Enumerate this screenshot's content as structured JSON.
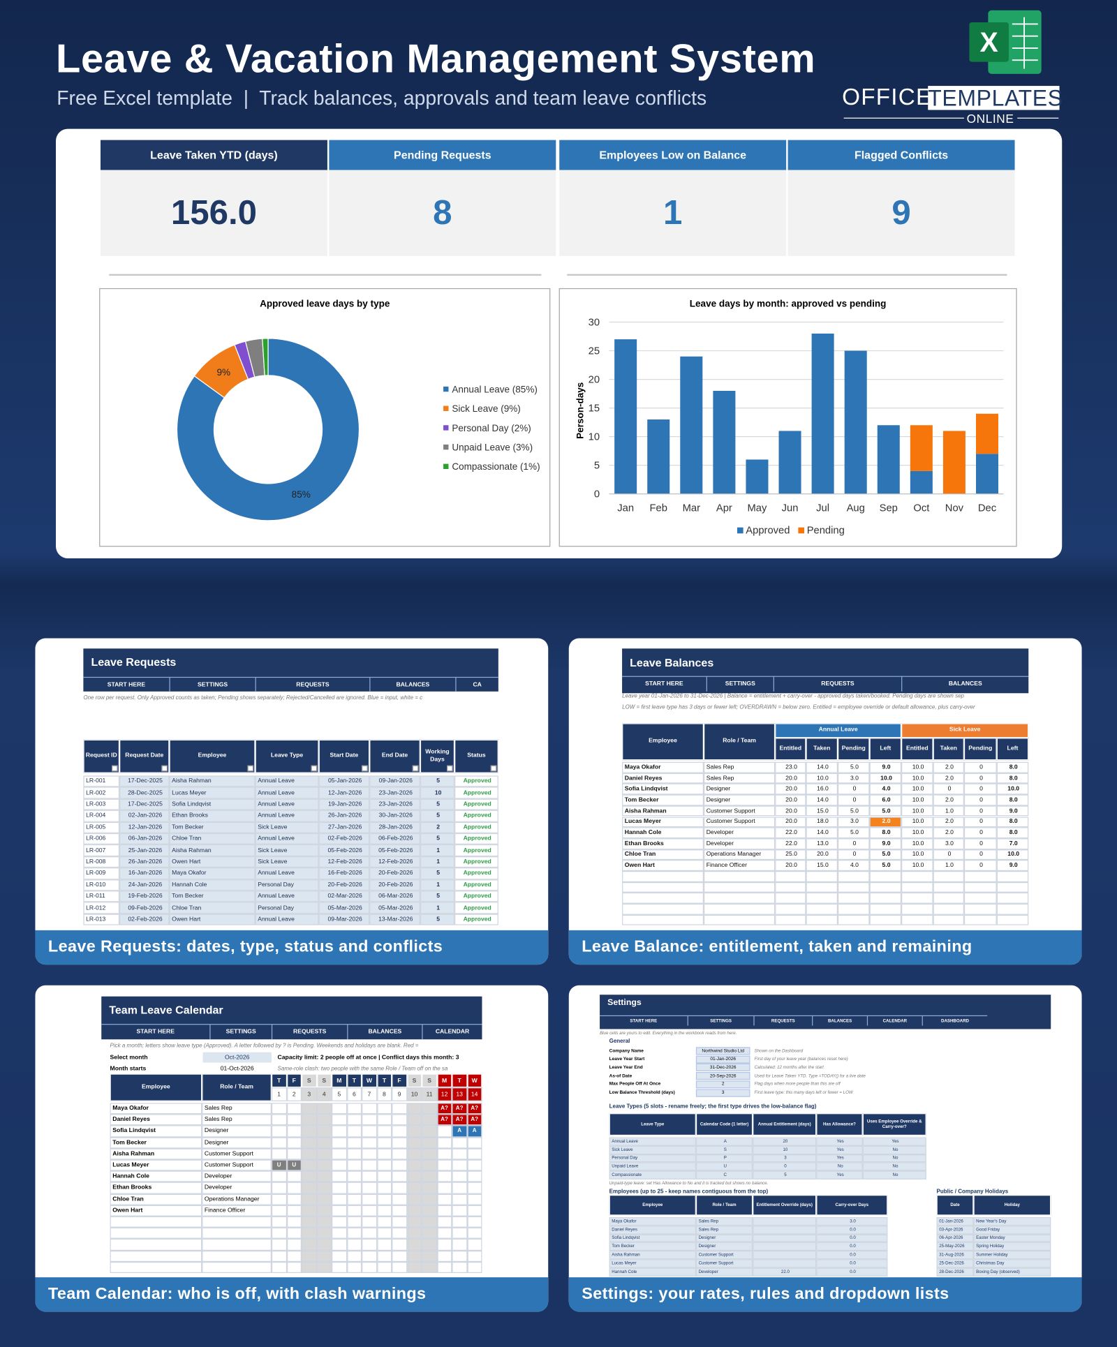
{
  "header": {
    "title": "Leave & Vacation Management System",
    "subtitle": "Free Excel template  |  Track balances, approvals and team leave conflicts",
    "brand_office": "OFFICE",
    "brand_templates": "TEMPLATES",
    "brand_online": "ONLINE"
  },
  "kpis": [
    {
      "label": "Leave Taken YTD (days)",
      "value": "156.0"
    },
    {
      "label": "Pending Requests",
      "value": "8"
    },
    {
      "label": "Employees Low on Balance",
      "value": "1"
    },
    {
      "label": "Flagged Conflicts",
      "value": "9"
    }
  ],
  "chart_data": [
    {
      "type": "donut",
      "title": "Approved leave days by type",
      "categories": [
        "Annual Leave (85%)",
        "Sick Leave (9%)",
        "Personal Day (2%)",
        "Unpaid Leave (3%)",
        "Compassionate (1%)"
      ],
      "values": [
        85,
        9,
        2,
        3,
        1
      ],
      "value_labels": [
        "85%",
        "9%",
        null,
        null,
        null
      ],
      "colors": [
        "#2e75b6",
        "#f07d1a",
        "#7f4fd0",
        "#7f7f7f",
        "#2ca02c"
      ],
      "legend": "right"
    },
    {
      "type": "bar",
      "title": "Leave days by month: approved vs pending",
      "ylabel": "Person-days",
      "categories": [
        "Jan",
        "Feb",
        "Mar",
        "Apr",
        "May",
        "Jun",
        "Jul",
        "Aug",
        "Sep",
        "Oct",
        "Nov",
        "Dec"
      ],
      "stacked": true,
      "series": [
        {
          "name": "Approved",
          "color": "#2e75b6",
          "values": [
            27,
            13,
            24,
            18,
            6,
            11,
            28,
            25,
            12,
            4,
            0,
            7
          ]
        },
        {
          "name": "Pending",
          "color": "#f7760c",
          "values": [
            0,
            0,
            0,
            0,
            0,
            0,
            0,
            0,
            0,
            8,
            11,
            7
          ]
        }
      ],
      "ylim": [
        0,
        30
      ],
      "yticks": [
        0,
        5,
        10,
        15,
        20,
        25,
        30
      ],
      "grid": true,
      "legend": "bottom"
    }
  ],
  "requests": {
    "title": "Leave Requests",
    "tabs": [
      "START HERE",
      "SETTINGS",
      "REQUESTS",
      "BALANCES",
      "CA"
    ],
    "note": "One row per request. Only Approved counts as taken; Pending shows separately; Rejected/Cancelled are ignored. Blue = input, white = c",
    "columns": [
      "Request ID",
      "Request Date",
      "Employee",
      "Leave Type",
      "Start Date",
      "End Date",
      "Working Days",
      "Status"
    ],
    "rows": [
      [
        "LR-001",
        "17-Dec-2025",
        "Aisha Rahman",
        "Annual Leave",
        "05-Jan-2026",
        "09-Jan-2026",
        5,
        "Approved"
      ],
      [
        "LR-002",
        "28-Dec-2025",
        "Lucas Meyer",
        "Annual Leave",
        "12-Jan-2026",
        "23-Jan-2026",
        10,
        "Approved"
      ],
      [
        "LR-003",
        "17-Dec-2025",
        "Sofia Lindqvist",
        "Annual Leave",
        "19-Jan-2026",
        "23-Jan-2026",
        5,
        "Approved"
      ],
      [
        "LR-004",
        "02-Jan-2026",
        "Ethan Brooks",
        "Annual Leave",
        "26-Jan-2026",
        "30-Jan-2026",
        5,
        "Approved"
      ],
      [
        "LR-005",
        "12-Jan-2026",
        "Tom Becker",
        "Sick Leave",
        "27-Jan-2026",
        "28-Jan-2026",
        2,
        "Approved"
      ],
      [
        "LR-006",
        "06-Jan-2026",
        "Chloe Tran",
        "Annual Leave",
        "02-Feb-2026",
        "06-Feb-2026",
        5,
        "Approved"
      ],
      [
        "LR-007",
        "25-Jan-2026",
        "Aisha Rahman",
        "Sick Leave",
        "05-Feb-2026",
        "05-Feb-2026",
        1,
        "Approved"
      ],
      [
        "LR-008",
        "26-Jan-2026",
        "Owen Hart",
        "Sick Leave",
        "12-Feb-2026",
        "12-Feb-2026",
        1,
        "Approved"
      ],
      [
        "LR-009",
        "16-Jan-2026",
        "Maya Okafor",
        "Annual Leave",
        "16-Feb-2026",
        "20-Feb-2026",
        5,
        "Approved"
      ],
      [
        "LR-010",
        "24-Jan-2026",
        "Hannah Cole",
        "Personal Day",
        "20-Feb-2026",
        "20-Feb-2026",
        1,
        "Approved"
      ],
      [
        "LR-011",
        "19-Feb-2026",
        "Tom Becker",
        "Annual Leave",
        "02-Mar-2026",
        "06-Mar-2026",
        5,
        "Approved"
      ],
      [
        "LR-012",
        "09-Feb-2026",
        "Chloe Tran",
        "Personal Day",
        "05-Mar-2026",
        "05-Mar-2026",
        1,
        "Approved"
      ],
      [
        "LR-013",
        "02-Feb-2026",
        "Owen Hart",
        "Annual Leave",
        "09-Mar-2026",
        "13-Mar-2026",
        5,
        "Approved"
      ]
    ],
    "caption": "Leave Requests: dates, type, status and conflicts"
  },
  "balances": {
    "title": "Leave Balances",
    "tabs": [
      "START HERE",
      "SETTINGS",
      "REQUESTS",
      "BALANCES"
    ],
    "notes": [
      "Leave year 01-Jan-2026 to 31-Dec-2026  |  Balance = entitlement + carry-over - approved days taken/booked.  Pending days are shown sep",
      "LOW = first leave type has 3 days or fewer left; OVERDRAWN = below zero. Entitled = employee override or default allowance, plus carry-over"
    ],
    "columns": [
      "Employee",
      "Role / Team"
    ],
    "groups": [
      "Annual Leave",
      "Sick Leave"
    ],
    "subcolumns": [
      "Entitled",
      "Taken",
      "Pending",
      "Left"
    ],
    "rows": [
      [
        "Maya Okafor",
        "Sales Rep",
        "23.0",
        "14.0",
        "5.0",
        "9.0",
        "10.0",
        "2.0",
        "0",
        "8.0"
      ],
      [
        "Daniel Reyes",
        "Sales Rep",
        "20.0",
        "10.0",
        "3.0",
        "10.0",
        "10.0",
        "2.0",
        "0",
        "8.0"
      ],
      [
        "Sofia Lindqvist",
        "Designer",
        "20.0",
        "16.0",
        "0",
        "4.0",
        "10.0",
        "0",
        "0",
        "10.0"
      ],
      [
        "Tom Becker",
        "Designer",
        "20.0",
        "14.0",
        "0",
        "6.0",
        "10.0",
        "2.0",
        "0",
        "8.0"
      ],
      [
        "Aisha Rahman",
        "Customer Support",
        "20.0",
        "15.0",
        "5.0",
        "5.0",
        "10.0",
        "1.0",
        "0",
        "9.0"
      ],
      [
        "Lucas Meyer",
        "Customer Support",
        "20.0",
        "18.0",
        "3.0",
        "2.0",
        "10.0",
        "2.0",
        "0",
        "8.0"
      ],
      [
        "Hannah Cole",
        "Developer",
        "22.0",
        "14.0",
        "5.0",
        "8.0",
        "10.0",
        "2.0",
        "0",
        "8.0"
      ],
      [
        "Ethan Brooks",
        "Developer",
        "22.0",
        "13.0",
        "0",
        "9.0",
        "10.0",
        "3.0",
        "0",
        "7.0"
      ],
      [
        "Chloe Tran",
        "Operations Manager",
        "25.0",
        "20.0",
        "0",
        "5.0",
        "10.0",
        "0",
        "0",
        "10.0"
      ],
      [
        "Owen Hart",
        "Finance Officer",
        "20.0",
        "15.0",
        "4.0",
        "5.0",
        "10.0",
        "1.0",
        "0",
        "9.0"
      ]
    ],
    "caption": "Leave Balance: entitlement, taken and remaining"
  },
  "calendar": {
    "title": "Team Leave Calendar",
    "tabs": [
      "START HERE",
      "SETTINGS",
      "REQUESTS",
      "BALANCES",
      "CALENDAR"
    ],
    "note": "Pick a month; letters show leave type (Approved). A letter followed by ? is Pending. Weekends and holidays are blank. Red =",
    "select_month": {
      "label": "Select month",
      "value": "Oct-2026"
    },
    "month_starts": {
      "label": "Month starts",
      "value": "01-Oct-2026"
    },
    "capacity": "Capacity limit: 2 people off at once  |  Conflict days this month: 3",
    "note2": "Same-role clash: two people with the same Role / Team off on the sa",
    "columns": [
      "Employee",
      "Role / Team"
    ],
    "day_letters": [
      "T",
      "F",
      "S",
      "S",
      "M",
      "T",
      "W",
      "T",
      "F",
      "S",
      "S",
      "M",
      "T",
      "W"
    ],
    "day_numbers": [
      1,
      2,
      3,
      4,
      5,
      6,
      7,
      8,
      9,
      10,
      11,
      12,
      13,
      14
    ],
    "shaded_days": [
      3,
      4,
      10,
      11
    ],
    "conflict_days": [
      12,
      13,
      14
    ],
    "employees": [
      {
        "name": "Maya Okafor",
        "role": "Sales Rep",
        "days": [
          null,
          null,
          null,
          null,
          null,
          null,
          null,
          null,
          null,
          null,
          null,
          "A?",
          "A?",
          "A?"
        ]
      },
      {
        "name": "Daniel Reyes",
        "role": "Sales Rep",
        "days": [
          null,
          null,
          null,
          null,
          null,
          null,
          null,
          null,
          null,
          null,
          null,
          "A?",
          "A?",
          "A?"
        ]
      },
      {
        "name": "Sofia Lindqvist",
        "role": "Designer",
        "days": [
          null,
          null,
          null,
          null,
          null,
          null,
          null,
          null,
          null,
          null,
          null,
          null,
          "A",
          "A"
        ]
      },
      {
        "name": "Tom Becker",
        "role": "Designer",
        "days": [
          null,
          null,
          null,
          null,
          null,
          null,
          null,
          null,
          null,
          null,
          null,
          null,
          null,
          null
        ]
      },
      {
        "name": "Aisha Rahman",
        "role": "Customer Support",
        "days": [
          null,
          null,
          null,
          null,
          null,
          null,
          null,
          null,
          null,
          null,
          null,
          null,
          null,
          null
        ]
      },
      {
        "name": "Lucas Meyer",
        "role": "Customer Support",
        "days": [
          "U",
          "U",
          null,
          null,
          null,
          null,
          null,
          null,
          null,
          null,
          null,
          null,
          null,
          null
        ]
      },
      {
        "name": "Hannah Cole",
        "role": "Developer",
        "days": [
          null,
          null,
          null,
          null,
          null,
          null,
          null,
          null,
          null,
          null,
          null,
          null,
          null,
          null
        ]
      },
      {
        "name": "Ethan Brooks",
        "role": "Developer",
        "days": [
          null,
          null,
          null,
          null,
          null,
          null,
          null,
          null,
          null,
          null,
          null,
          null,
          null,
          null
        ]
      },
      {
        "name": "Chloe Tran",
        "role": "Operations Manager",
        "days": [
          null,
          null,
          null,
          null,
          null,
          null,
          null,
          null,
          null,
          null,
          null,
          null,
          null,
          null
        ]
      },
      {
        "name": "Owen Hart",
        "role": "Finance Officer",
        "days": [
          null,
          null,
          null,
          null,
          null,
          null,
          null,
          null,
          null,
          null,
          null,
          null,
          null,
          null
        ]
      }
    ],
    "caption": "Team Calendar: who is off, with clash warnings"
  },
  "settings": {
    "title": "Settings",
    "tabs": [
      "START HERE",
      "SETTINGS",
      "REQUESTS",
      "BALANCES",
      "CALENDAR",
      "DASHBOARD"
    ],
    "note": "Blue cells are yours to edit. Everything in the workbook reads from here.",
    "general": {
      "heading": "General",
      "rows": [
        [
          "Company Name",
          "Northwind Studio Ltd",
          "Shown on the Dashboard"
        ],
        [
          "Leave Year Start",
          "01-Jan-2026",
          "First day of your leave year (balances reset here)"
        ],
        [
          "Leave Year End",
          "31-Dec-2026",
          "Calculated: 12 months after the start"
        ],
        [
          "As-of Date",
          "20-Sep-2026",
          "Used for Leave Taken YTD. Type =TODAY() for a live date"
        ],
        [
          "Max People Off At Once",
          2,
          "Flag days when more people than this are off"
        ],
        [
          "Low Balance Threshold (days)",
          3,
          "First leave type: this many days left or fewer = LOW"
        ]
      ]
    },
    "types": {
      "heading": "Leave Types (5 slots - rename freely; the first type drives the low-balance flag)",
      "columns": [
        "Leave Type",
        "Calendar Code (1 letter)",
        "Annual Entitlement (days)",
        "Has Allowance?",
        "Uses Employee Override & Carry-over?"
      ],
      "rows": [
        [
          "Annual Leave",
          "A",
          20,
          "Yes",
          "Yes"
        ],
        [
          "Sick Leave",
          "S",
          10,
          "Yes",
          "No"
        ],
        [
          "Personal Day",
          "P",
          3,
          "Yes",
          "No"
        ],
        [
          "Unpaid Leave",
          "U",
          0,
          "No",
          "No"
        ],
        [
          "Compassionate",
          "C",
          5,
          "Yes",
          "No"
        ]
      ],
      "note": "Unpaid-type leave: set Has Allowance to No and it is tracked but shows no balance."
    },
    "employees": {
      "heading": "Employees (up to 25 - keep names contiguous from the top)",
      "columns": [
        "Employee",
        "Role / Team",
        "Entitlement Override (days)",
        "Carry-over Days"
      ],
      "rows": [
        [
          "Maya Okafor",
          "Sales Rep",
          null,
          "3.0"
        ],
        [
          "Daniel Reyes",
          "Sales Rep",
          null,
          "0.0"
        ],
        [
          "Sofia Lindqvist",
          "Designer",
          null,
          "0.0"
        ],
        [
          "Tom Becker",
          "Designer",
          null,
          "0.0"
        ],
        [
          "Aisha Rahman",
          "Customer Support",
          null,
          "0.0"
        ],
        [
          "Lucas Meyer",
          "Customer Support",
          null,
          "0.0"
        ],
        [
          "Hannah Cole",
          "Developer",
          "22.0",
          "0.0"
        ]
      ]
    },
    "holidays": {
      "heading": "Public / Company Holidays",
      "columns": [
        "Date",
        "Holiday"
      ],
      "rows": [
        [
          "01-Jan-2026",
          "New Year's Day"
        ],
        [
          "03-Apr-2026",
          "Good Friday"
        ],
        [
          "06-Apr-2026",
          "Easter Monday"
        ],
        [
          "25-May-2026",
          "Spring Holiday"
        ],
        [
          "31-Aug-2026",
          "Summer Holiday"
        ],
        [
          "25-Dec-2026",
          "Christmas Day"
        ],
        [
          "28-Dec-2026",
          "Boxing Day (observed)"
        ]
      ]
    },
    "caption": "Settings: your rates, rules and dropdown lists"
  }
}
